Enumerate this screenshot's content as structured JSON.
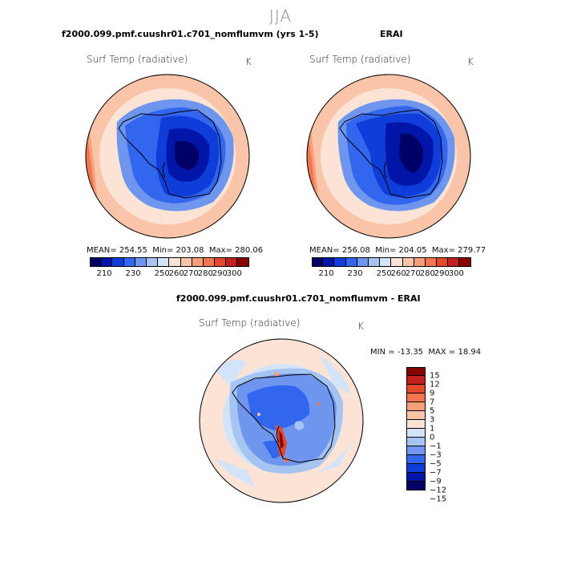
{
  "season": "JJA",
  "colors": {
    "abs": [
      "#000066",
      "#0016a8",
      "#0f3dd9",
      "#3366ee",
      "#6f96ee",
      "#a6c4f2",
      "#d4e4f8",
      "#fbe4d6",
      "#fac4a8",
      "#f79e7a",
      "#f27750",
      "#e5492c",
      "#c21f1f",
      "#870000"
    ],
    "diff": [
      "#000066",
      "#0016a8",
      "#0f3dd9",
      "#3366ee",
      "#6f96ee",
      "#a6c4f2",
      "#d4e4f8",
      "#fbe4d6",
      "#fac4a8",
      "#f79e7a",
      "#f27750",
      "#e5492c",
      "#c21f1f",
      "#870000"
    ]
  },
  "panels": [
    {
      "title": "f2000.099.pmf.cuushr01.c701_nomflumvm (yrs 1-5)",
      "variable": "Surf Temp (radiative)",
      "units": "K",
      "mean_label": "MEAN=",
      "mean": "254.55",
      "min_label": "Min=",
      "min": "203.08",
      "max_label": "Max=",
      "max": "280.06"
    },
    {
      "title": "ERAI",
      "variable": "Surf Temp (radiative)",
      "units": "K",
      "mean_label": "MEAN=",
      "mean": "256.08",
      "min_label": "Min=",
      "min": "204.05",
      "max_label": "Max=",
      "max": "279.77"
    }
  ],
  "diff_panel": {
    "title": "f2000.099.pmf.cuushr01.c701_nomflumvm - ERAI",
    "variable": "Surf Temp (radiative)",
    "units": "K",
    "min_label": "MIN =",
    "min": "-13.35",
    "max_label": "MAX =",
    "max": "18.94"
  },
  "chart_data": [
    {
      "type": "heatmap",
      "projection": "south-polar-stereographic",
      "title": "f2000.099.pmf.cuushr01.c701_nomflumvm (yrs 1-5)",
      "variable": "Surf Temp (radiative)",
      "units": "K",
      "mean": 254.55,
      "min": 203.08,
      "max": 280.06,
      "colorbar_ticks": [
        "210",
        "230",
        "250",
        "260",
        "270",
        "280",
        "290",
        "300"
      ]
    },
    {
      "type": "heatmap",
      "projection": "south-polar-stereographic",
      "title": "ERAI",
      "variable": "Surf Temp (radiative)",
      "units": "K",
      "mean": 256.08,
      "min": 204.05,
      "max": 279.77,
      "colorbar_ticks": [
        "210",
        "230",
        "250",
        "260",
        "270",
        "280",
        "290",
        "300"
      ]
    },
    {
      "type": "heatmap",
      "projection": "south-polar-stereographic",
      "title": "f2000.099.pmf.cuushr01.c701_nomflumvm - ERAI",
      "variable": "Surf Temp (radiative)",
      "units": "K",
      "min": -13.35,
      "max": 18.94,
      "colorbar_ticks": [
        "15",
        "12",
        "9",
        "7",
        "5",
        "3",
        "1",
        "0",
        "−1",
        "−3",
        "−5",
        "−7",
        "−9",
        "−12",
        "−15"
      ]
    }
  ]
}
